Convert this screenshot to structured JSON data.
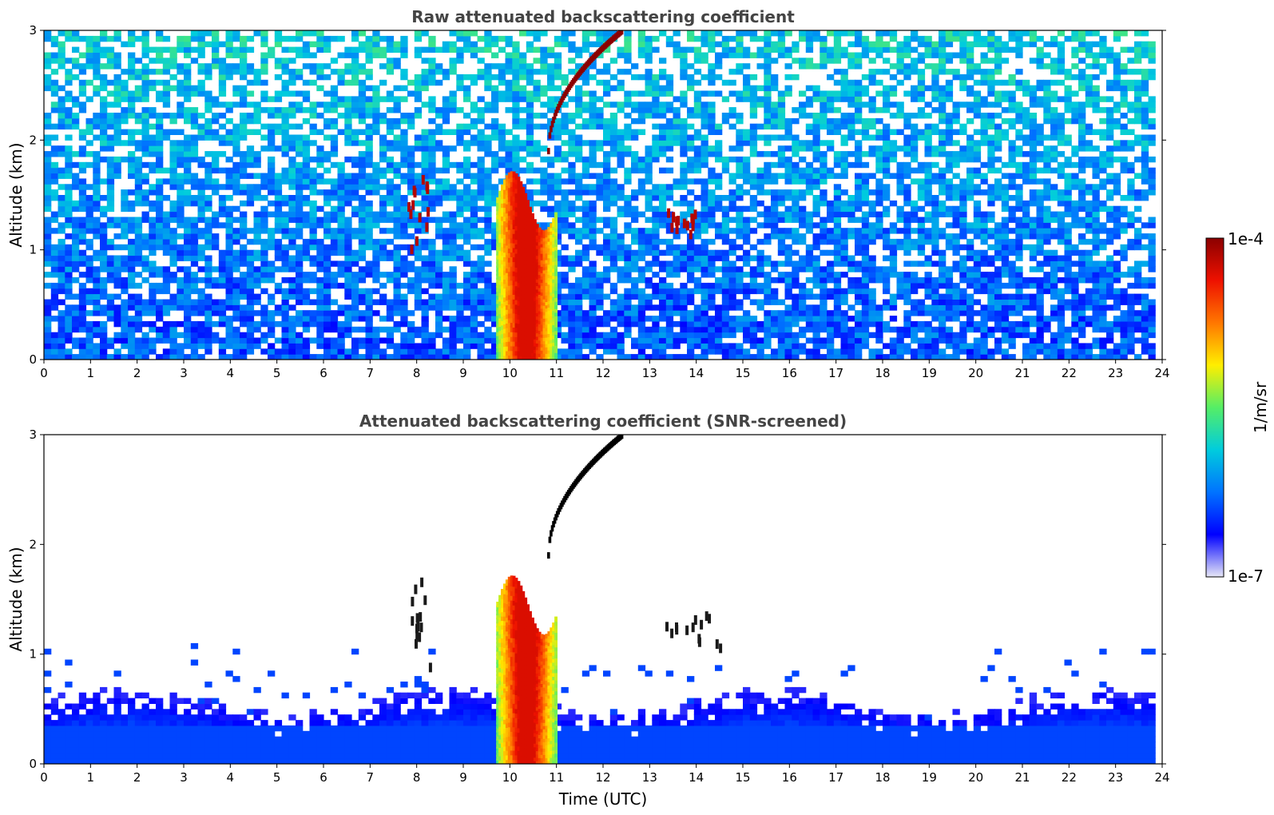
{
  "chart_data": [
    {
      "type": "heatmap",
      "title": "Raw attenuated backscattering coefficient",
      "xlabel": "",
      "ylabel": "Altitude (km)",
      "xlim": [
        0,
        24
      ],
      "ylim": [
        0,
        3
      ],
      "x_ticks": [
        "0",
        "1",
        "2",
        "3",
        "4",
        "5",
        "6",
        "7",
        "8",
        "9",
        "10",
        "11",
        "12",
        "13",
        "14",
        "15",
        "16",
        "17",
        "18",
        "19",
        "20",
        "21",
        "22",
        "23",
        "24"
      ],
      "y_ticks": [
        "0",
        "1",
        "2",
        "3"
      ],
      "grid": false,
      "features": [
        {
          "name": "aerosol-layer-base",
          "x_range": [
            0,
            23.8
          ],
          "y_range": [
            0,
            0.35
          ],
          "level": 0.32
        },
        {
          "name": "main-cloud",
          "x_range": [
            9.7,
            11.0
          ],
          "y_range": [
            0,
            1.8
          ],
          "level": 0.9
        },
        {
          "name": "cirrus-arc",
          "x_range": [
            10.8,
            12.4
          ],
          "y_range": [
            1.9,
            3.0
          ],
          "level": 1.0
        },
        {
          "name": "plume-8h",
          "x_range": [
            7.8,
            8.3
          ],
          "y_range": [
            0.8,
            1.7
          ],
          "level": 0.95
        },
        {
          "name": "feature-13-14h",
          "x_range": [
            13.3,
            14.5
          ],
          "y_range": [
            1.05,
            1.35
          ],
          "level": 0.95
        }
      ]
    },
    {
      "type": "heatmap",
      "title": "Attenuated backscattering coefficient (SNR-screened)",
      "xlabel": "Time (UTC)",
      "ylabel": "Altitude (km)",
      "xlim": [
        0,
        24
      ],
      "ylim": [
        0,
        3
      ],
      "x_ticks": [
        "0",
        "1",
        "2",
        "3",
        "4",
        "5",
        "6",
        "7",
        "8",
        "9",
        "10",
        "11",
        "12",
        "13",
        "14",
        "15",
        "16",
        "17",
        "18",
        "19",
        "20",
        "21",
        "22",
        "23",
        "24"
      ],
      "y_ticks": [
        "0",
        "1",
        "2",
        "3"
      ],
      "grid": false,
      "features": [
        {
          "name": "aerosol-layer-base",
          "x_range": [
            0,
            23.8
          ],
          "y_range": [
            0,
            0.65
          ],
          "level": 0.25
        },
        {
          "name": "main-cloud",
          "x_range": [
            9.7,
            11.0
          ],
          "y_range": [
            0,
            1.8
          ],
          "level": 0.9
        },
        {
          "name": "cirrus-arc",
          "x_range": [
            10.8,
            12.4
          ],
          "y_range": [
            1.9,
            3.0
          ],
          "level": 1.0
        },
        {
          "name": "plume-8h",
          "x_range": [
            7.8,
            8.3
          ],
          "y_range": [
            0.8,
            1.7
          ],
          "level": 0.95
        },
        {
          "name": "feature-13-14h",
          "x_range": [
            13.3,
            14.5
          ],
          "y_range": [
            1.05,
            1.35
          ],
          "level": 0.95
        }
      ]
    }
  ],
  "colorbar": {
    "label": "1/m/sr",
    "max_label": "1e-4",
    "min_label": "1e-7",
    "colors": [
      "#e6e6f5",
      "#0000ff",
      "#0073ff",
      "#00ccdd",
      "#55ee66",
      "#ffee00",
      "#ff7700",
      "#ee1100",
      "#8b0000"
    ]
  }
}
